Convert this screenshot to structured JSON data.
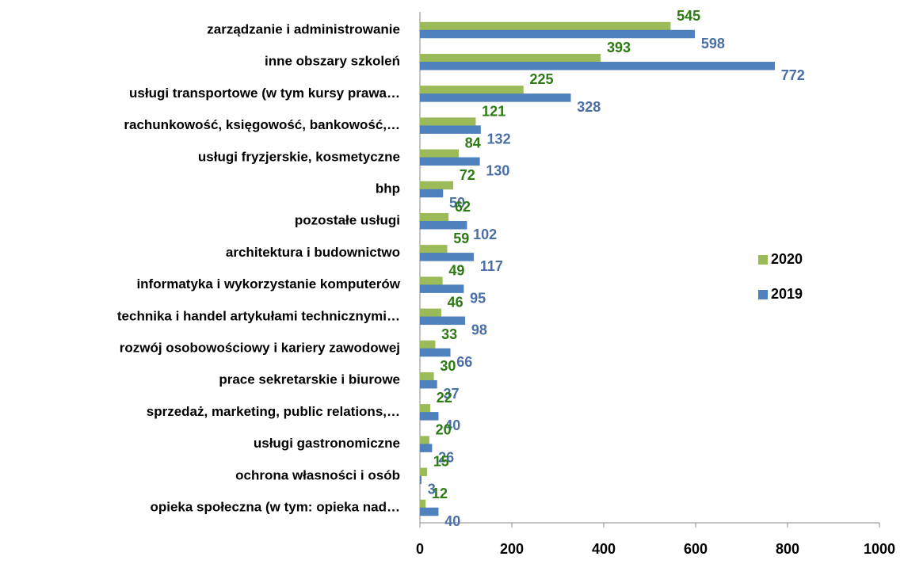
{
  "chart_data": {
    "type": "hbar",
    "categories": [
      "zarządzanie i administrowanie",
      "inne obszary szkoleń",
      "usługi transportowe (w tym kursy prawa…",
      "rachunkowość, księgowość, bankowość,…",
      "usługi fryzjerskie, kosmetyczne",
      "bhp",
      "pozostałe usługi",
      "architektura i budownictwo",
      "informatyka i wykorzystanie komputerów",
      "technika i handel artykułami technicznymi…",
      "rozwój osobowościowy  i kariery zawodowej",
      "prace sekretarskie i biurowe",
      "sprzedaż, marketing, public relations,…",
      "usługi gastronomiczne",
      "ochrona własności i osób",
      "opieka społeczna (w tym: opieka nad…"
    ],
    "series": [
      {
        "name": "2020",
        "color": "#9bbb59",
        "label_color": "#2b7a12",
        "values": [
          545,
          393,
          225,
          121,
          84,
          72,
          62,
          59,
          49,
          46,
          33,
          30,
          22,
          20,
          15,
          12
        ]
      },
      {
        "name": "2019",
        "color": "#4f81bd",
        "label_color": "#4a6fa5",
        "values": [
          598,
          772,
          328,
          132,
          130,
          50,
          102,
          117,
          95,
          98,
          66,
          37,
          40,
          26,
          3,
          40
        ]
      }
    ],
    "xlim": [
      0,
      1000
    ],
    "xticks": [
      0,
      200,
      400,
      600,
      800,
      1000
    ],
    "grid": false,
    "legend": "right"
  }
}
